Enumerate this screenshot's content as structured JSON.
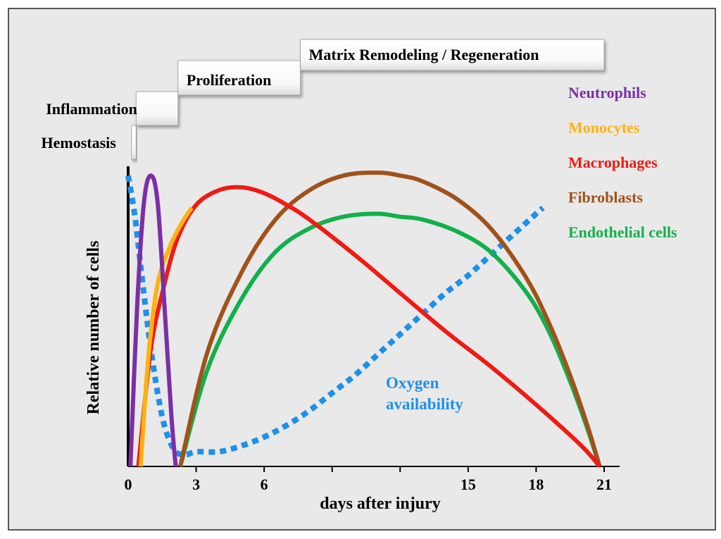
{
  "chart_data": {
    "type": "line",
    "title": "",
    "xlabel": "days after injury",
    "ylabel": "Relative number of cells",
    "xlim": [
      0,
      21
    ],
    "ylim": [
      0,
      1
    ],
    "x_ticks": [
      "0",
      "3",
      "6",
      "15",
      "18",
      "21"
    ],
    "phases": [
      {
        "name": "Hemostasis",
        "start_day": 0.15,
        "end_day": 0.35
      },
      {
        "name": "Inflammation",
        "start_day": 0.35,
        "end_day": 2.2
      },
      {
        "name": "Proliferation",
        "start_day": 2.2,
        "end_day": 7.6
      },
      {
        "name": "Matrix Remodeling / Regeneration",
        "start_day": 7.6,
        "end_day": 21
      }
    ],
    "series": [
      {
        "name": "Neutrophils",
        "color": "#7B2FA5",
        "style": "solid",
        "x": [
          0.1,
          0.4,
          0.7,
          1.0,
          1.3,
          1.6,
          1.9,
          2.1
        ],
        "y": [
          0.0,
          0.55,
          0.9,
          0.99,
          0.9,
          0.55,
          0.18,
          0.0
        ]
      },
      {
        "name": "Monocytes",
        "color": "#FFB20F",
        "style": "solid",
        "x": [
          0.55,
          0.9,
          1.3,
          1.8,
          2.3,
          2.8
        ],
        "y": [
          0.0,
          0.38,
          0.62,
          0.74,
          0.82,
          0.88
        ]
      },
      {
        "name": "Macrophages",
        "color": "#EE1C14",
        "style": "solid",
        "x": [
          0.45,
          1.0,
          1.6,
          2.2,
          3.0,
          4.0,
          5.0,
          6.0,
          7.0,
          8.0,
          10.0,
          12.0,
          14.0,
          16.0,
          18.0,
          20.0,
          20.8
        ],
        "y": [
          0.0,
          0.4,
          0.62,
          0.78,
          0.89,
          0.94,
          0.95,
          0.93,
          0.89,
          0.84,
          0.72,
          0.59,
          0.46,
          0.34,
          0.21,
          0.07,
          0.0
        ]
      },
      {
        "name": "Fibroblasts",
        "color": "#A0521B",
        "style": "solid",
        "x": [
          2.3,
          3.5,
          5.0,
          6.5,
          8.0,
          9.5,
          11.0,
          12.0,
          13.0,
          14.5,
          16.0,
          17.5,
          18.5,
          19.5,
          20.3,
          20.8
        ],
        "y": [
          0.0,
          0.39,
          0.66,
          0.84,
          0.94,
          0.99,
          1.0,
          0.99,
          0.97,
          0.91,
          0.81,
          0.65,
          0.5,
          0.31,
          0.13,
          0.0
        ]
      },
      {
        "name": "Endothelial cells",
        "color": "#12B04C",
        "style": "solid",
        "x": [
          2.3,
          3.5,
          5.0,
          6.5,
          8.0,
          9.5,
          11.0,
          12.0,
          13.0,
          14.5,
          16.0,
          17.5,
          18.5,
          19.5,
          20.3,
          20.8
        ],
        "y": [
          0.0,
          0.33,
          0.57,
          0.73,
          0.81,
          0.85,
          0.86,
          0.85,
          0.84,
          0.8,
          0.73,
          0.6,
          0.47,
          0.29,
          0.12,
          0.0
        ]
      },
      {
        "name": "Oxygen availability",
        "color": "#1E90E8",
        "style": "dotted",
        "x": [
          0.0,
          0.3,
          0.6,
          1.0,
          1.5,
          2.0,
          2.5,
          3.0,
          4.0,
          5.0,
          6.0,
          7.0,
          8.0,
          9.0,
          10.0,
          11.0,
          12.0,
          13.0,
          14.0,
          15.0,
          16.0,
          17.0,
          18.0,
          18.3
        ],
        "y": [
          0.99,
          0.85,
          0.65,
          0.4,
          0.17,
          0.06,
          0.04,
          0.05,
          0.05,
          0.07,
          0.1,
          0.14,
          0.19,
          0.25,
          0.31,
          0.38,
          0.45,
          0.52,
          0.59,
          0.65,
          0.72,
          0.79,
          0.86,
          0.88
        ]
      }
    ],
    "legend": [
      "Neutrophils",
      "Monocytes",
      "Macrophages",
      "Fibroblasts",
      "Endothelial cells"
    ],
    "legend_position": "top-right",
    "annotations": [
      {
        "text_lines": [
          "Oxygen",
          "availability"
        ],
        "color": "#1E90E8"
      }
    ]
  }
}
